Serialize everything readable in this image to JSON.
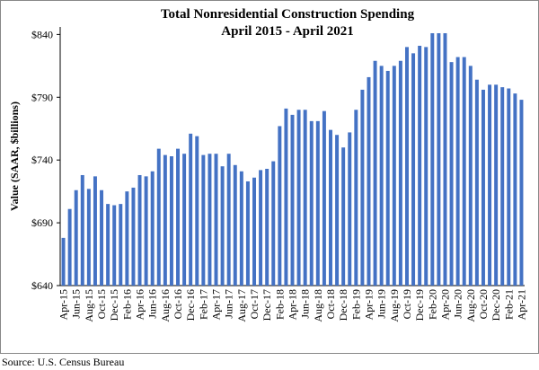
{
  "chart_data": {
    "type": "bar",
    "title": "Total Nonresidential Construction Spending",
    "subtitle": "April 2015 - April 2021",
    "y_label": "Value (SAAR, $billions)",
    "source": "Source:  U.S. Census Bureau",
    "color": "#4472c4",
    "grid": false,
    "ylim": [
      640,
      846
    ],
    "yticks": [
      {
        "value": 640,
        "label": "$640"
      },
      {
        "value": 690,
        "label": "$690"
      },
      {
        "value": 740,
        "label": "$740"
      },
      {
        "value": 790,
        "label": "$790"
      },
      {
        "value": 840,
        "label": "$840"
      }
    ],
    "categories": [
      "Apr-15",
      null,
      "Jun-15",
      null,
      "Aug-15",
      null,
      "Oct-15",
      null,
      "Dec-15",
      null,
      "Feb-16",
      null,
      "Apr-16",
      null,
      "Jun-16",
      null,
      "Aug-16",
      null,
      "Oct-16",
      null,
      "Dec-16",
      null,
      "Feb-17",
      null,
      "Apr-17",
      null,
      "Jun-17",
      null,
      "Aug-17",
      null,
      "Oct-17",
      null,
      "Dec-17",
      null,
      "Feb-18",
      null,
      "Apr-18",
      null,
      "Jun-18",
      null,
      "Aug-18",
      null,
      "Oct-18",
      null,
      "Dec-18",
      null,
      "Feb-19",
      null,
      "Apr-19",
      null,
      "Jun-19",
      null,
      "Aug-19",
      null,
      "Oct-19",
      null,
      "Dec-19",
      null,
      "Feb-20",
      null,
      "Apr-20",
      null,
      "Jun-20",
      null,
      "Aug-20",
      null,
      "Oct-20",
      null,
      "Dec-20",
      null,
      "Feb-21",
      null,
      "Apr-21"
    ],
    "values": [
      678,
      701,
      716,
      728,
      717,
      727,
      716,
      705,
      704,
      705,
      715,
      718,
      728,
      727,
      731,
      749,
      744,
      743,
      749,
      745,
      761,
      759,
      744,
      745,
      745,
      735,
      745,
      736,
      731,
      723,
      726,
      732,
      733,
      739,
      767,
      781,
      776,
      780,
      780,
      771,
      771,
      779,
      764,
      760,
      750,
      762,
      780,
      796,
      806,
      819,
      815,
      811,
      815,
      819,
      830,
      825,
      831,
      830,
      841,
      841,
      841,
      818,
      822,
      822,
      815,
      804,
      796,
      800,
      800,
      798,
      797,
      793,
      788
    ]
  }
}
